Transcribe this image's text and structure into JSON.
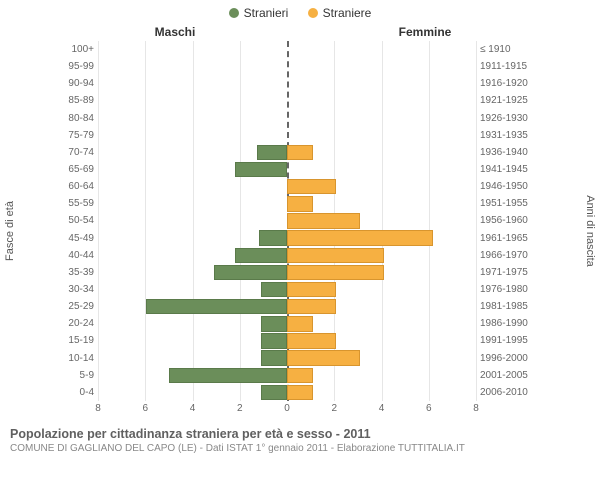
{
  "legend": {
    "male": {
      "label": "Stranieri",
      "color": "#6b8e5a"
    },
    "female": {
      "label": "Straniere",
      "color": "#f6b042"
    }
  },
  "titles": {
    "left": "Maschi",
    "right": "Femmine"
  },
  "y_left_label": "Fasce di età",
  "y_right_label": "Anni di nascita",
  "chart": {
    "type": "population-pyramid",
    "x_max": 8,
    "x_ticks": [
      8,
      6,
      4,
      2,
      0,
      2,
      4,
      6,
      8
    ],
    "male_color": "#6b8e5a",
    "female_color": "#f6b042",
    "male_border": "#5a7a4a",
    "female_border": "#d8952e",
    "grid_color": "#e6e6e6",
    "center_color": "#666666",
    "background_color": "#ffffff",
    "rows": [
      {
        "age": "100+",
        "birth": "≤ 1910",
        "m": 0,
        "f": 0
      },
      {
        "age": "95-99",
        "birth": "1911-1915",
        "m": 0,
        "f": 0
      },
      {
        "age": "90-94",
        "birth": "1916-1920",
        "m": 0,
        "f": 0
      },
      {
        "age": "85-89",
        "birth": "1921-1925",
        "m": 0,
        "f": 0
      },
      {
        "age": "80-84",
        "birth": "1926-1930",
        "m": 0,
        "f": 0
      },
      {
        "age": "75-79",
        "birth": "1931-1935",
        "m": 0,
        "f": 0
      },
      {
        "age": "70-74",
        "birth": "1936-1940",
        "m": 1.2,
        "f": 1
      },
      {
        "age": "65-69",
        "birth": "1941-1945",
        "m": 2.1,
        "f": 0
      },
      {
        "age": "60-64",
        "birth": "1946-1950",
        "m": 0,
        "f": 2
      },
      {
        "age": "55-59",
        "birth": "1951-1955",
        "m": 0,
        "f": 1
      },
      {
        "age": "50-54",
        "birth": "1956-1960",
        "m": 0,
        "f": 3
      },
      {
        "age": "45-49",
        "birth": "1961-1965",
        "m": 1.1,
        "f": 6.1
      },
      {
        "age": "40-44",
        "birth": "1966-1970",
        "m": 2.1,
        "f": 4
      },
      {
        "age": "35-39",
        "birth": "1971-1975",
        "m": 3,
        "f": 4
      },
      {
        "age": "30-34",
        "birth": "1976-1980",
        "m": 1,
        "f": 2
      },
      {
        "age": "25-29",
        "birth": "1981-1985",
        "m": 5.9,
        "f": 2
      },
      {
        "age": "20-24",
        "birth": "1986-1990",
        "m": 1,
        "f": 1
      },
      {
        "age": "15-19",
        "birth": "1991-1995",
        "m": 1,
        "f": 2
      },
      {
        "age": "10-14",
        "birth": "1996-2000",
        "m": 1,
        "f": 3
      },
      {
        "age": "5-9",
        "birth": "2001-2005",
        "m": 4.9,
        "f": 1
      },
      {
        "age": "0-4",
        "birth": "2006-2010",
        "m": 1,
        "f": 1
      }
    ]
  },
  "footer": {
    "title": "Popolazione per cittadinanza straniera per età e sesso - 2011",
    "subtitle": "COMUNE DI GAGLIANO DEL CAPO (LE) - Dati ISTAT 1° gennaio 2011 - Elaborazione TUTTITALIA.IT"
  }
}
